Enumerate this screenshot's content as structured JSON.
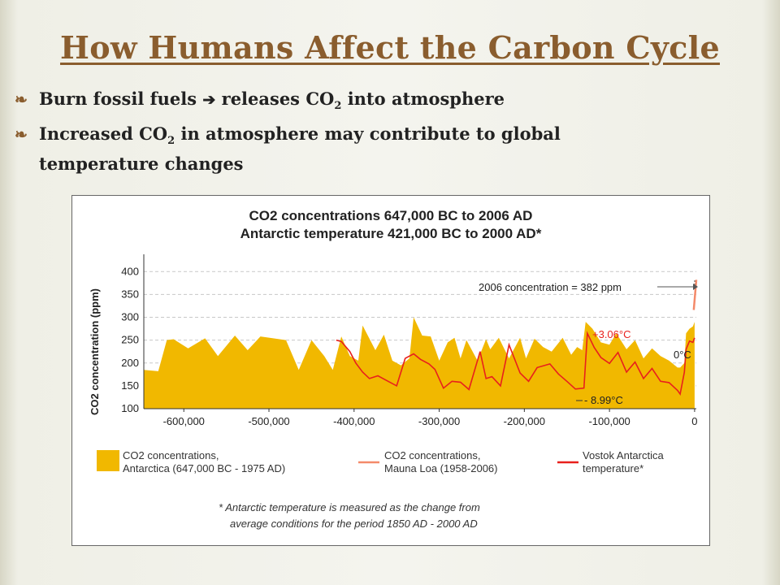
{
  "slide": {
    "title": "How Humans Affect the Carbon Cycle",
    "bullet_mark": "❧",
    "bullets": {
      "b1_a": "Burn fossil fuels",
      "b1_arrow": "➔",
      "b1_b": "releases CO",
      "b1_sub": "2",
      "b1_c": "into atmosphere",
      "b2_a": "Increased CO",
      "b2_sub": "2",
      "b2_b": "in atmosphere may contribute to global",
      "b2_c": "temperature changes"
    }
  },
  "chart_data": {
    "type": "area",
    "title_line1": "CO2 concentrations 647,000 BC to 2006 AD",
    "title_line2": "Antarctic temperature 421,000 BC to 2000 AD*",
    "ylabel": "CO2 concentration (ppm)",
    "ylim": [
      100,
      420
    ],
    "xlim": [
      -647000,
      2006
    ],
    "x_ticks": [
      -600000,
      -500000,
      -400000,
      -300000,
      -200000,
      -100000,
      0
    ],
    "x_tick_labels": [
      "-600,000",
      "-500,000",
      "-400,000",
      "-300,000",
      "-200,000",
      "-100,000",
      "0"
    ],
    "y_ticks": [
      100,
      150,
      200,
      250,
      300,
      350,
      400
    ],
    "grid": "dashed horizontal",
    "colors": {
      "co2": "#f1b800",
      "temp": "#e8201c",
      "mauna": "#f48a6a"
    },
    "series": [
      {
        "name": "CO2 concentrations, Antarctica (647,000 BC - 1975 AD)",
        "x": [
          -647000,
          -630000,
          -620000,
          -612000,
          -595000,
          -575000,
          -560000,
          -540000,
          -525000,
          -510000,
          -495000,
          -480000,
          -465000,
          -450000,
          -435000,
          -425000,
          -415000,
          -405000,
          -395000,
          -390000,
          -375000,
          -365000,
          -355000,
          -345000,
          -335000,
          -330000,
          -320000,
          -310000,
          -300000,
          -290000,
          -282000,
          -275000,
          -268000,
          -255000,
          -245000,
          -240000,
          -230000,
          -218000,
          -205000,
          -198000,
          -188000,
          -178000,
          -168000,
          -155000,
          -145000,
          -138000,
          -132000,
          -128000,
          -120000,
          -110000,
          -100000,
          -92000,
          -80000,
          -70000,
          -60000,
          -50000,
          -40000,
          -30000,
          -20000,
          -17000,
          -12000,
          -10000,
          -6000,
          -2000,
          0
        ],
        "values": [
          185,
          182,
          250,
          252,
          232,
          254,
          215,
          260,
          228,
          258,
          254,
          250,
          185,
          250,
          215,
          185,
          258,
          215,
          205,
          282,
          228,
          262,
          205,
          195,
          210,
          300,
          260,
          258,
          205,
          245,
          255,
          210,
          250,
          205,
          252,
          230,
          255,
          210,
          255,
          210,
          253,
          235,
          225,
          255,
          218,
          235,
          228,
          290,
          275,
          245,
          240,
          265,
          230,
          250,
          210,
          232,
          215,
          205,
          190,
          190,
          200,
          265,
          275,
          280,
          290
        ]
      },
      {
        "name": "CO2 concentrations, Mauna Loa (1958-2006)",
        "x": [
          -1000,
          2006
        ],
        "values": [
          316,
          382
        ]
      },
      {
        "name": "Vostok Antarctica temperature*",
        "x": [
          -421000,
          -415000,
          -405000,
          -398000,
          -390000,
          -382000,
          -372000,
          -360000,
          -350000,
          -340000,
          -330000,
          -322000,
          -312000,
          -305000,
          -295000,
          -285000,
          -275000,
          -265000,
          -252000,
          -245000,
          -238000,
          -228000,
          -218000,
          -205000,
          -195000,
          -185000,
          -170000,
          -160000,
          -150000,
          -140000,
          -130000,
          -126000,
          -118000,
          -110000,
          -100000,
          -90000,
          -80000,
          -70000,
          -60000,
          -50000,
          -40000,
          -30000,
          -20000,
          -17000,
          -12000,
          -10000,
          -6000,
          -2000,
          0
        ],
        "values": [
          250,
          247,
          225,
          200,
          180,
          166,
          172,
          160,
          150,
          210,
          220,
          208,
          198,
          186,
          145,
          160,
          158,
          142,
          225,
          166,
          170,
          150,
          240,
          178,
          160,
          190,
          198,
          176,
          160,
          143,
          145,
          265,
          234,
          212,
          199,
          223,
          180,
          202,
          166,
          188,
          160,
          157,
          140,
          132,
          180,
          230,
          248,
          245,
          255
        ]
      }
    ],
    "annotations": {
      "concentration_2006": "2006 concentration = 382 ppm",
      "temp_high": "+3.06°C",
      "temp_low": "- 8.99°C",
      "temp_zero": "0°C"
    },
    "legend": {
      "co2_line1": "CO2 concentrations,",
      "co2_line2": "Antarctica (647,000 BC - 1975 AD)",
      "mauna_line1": "CO2 concentrations,",
      "mauna_line2": "Mauna Loa (1958-2006)",
      "temp_line1": "Vostok Antarctica",
      "temp_line2": "temperature*"
    },
    "footnote_line1": "* Antarctic temperature is measured as the change from",
    "footnote_line2": "average conditions for the period 1850 AD - 2000 AD"
  }
}
